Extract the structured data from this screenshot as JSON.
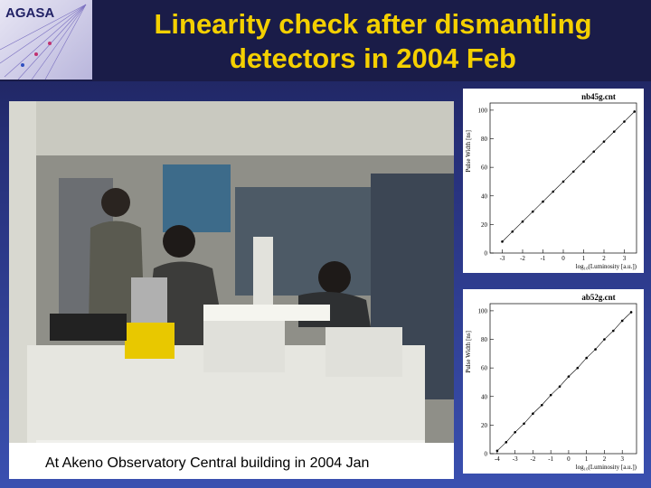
{
  "header": {
    "logo": "AGASA",
    "title_lines": [
      "Linearity check after dismantling",
      "detectors in 2004 Feb"
    ]
  },
  "photo": {
    "caption": "At Akeno Observatory Central building in 2004 Jan"
  },
  "chart_data": [
    {
      "type": "scatter",
      "title": "nb45g.cnt",
      "xlabel": "log₁₀(Luminosity [a.u.])",
      "ylabel": "Pulse Width [ns]",
      "xlim": [
        -3.6,
        3.6
      ],
      "ylim": [
        0,
        105
      ],
      "xticks": [
        -3,
        -2,
        -1,
        0,
        1,
        2,
        3
      ],
      "yticks": [
        0,
        20,
        40,
        60,
        80,
        100
      ],
      "color": "#000000",
      "x": [
        -3.0,
        -2.5,
        -2.0,
        -1.5,
        -1.0,
        -0.5,
        0.0,
        0.5,
        1.0,
        1.5,
        2.0,
        2.5,
        3.0,
        3.5
      ],
      "y": [
        8,
        15,
        22,
        29,
        36,
        43,
        50,
        57,
        64,
        71,
        78,
        85,
        92,
        99
      ]
    },
    {
      "type": "scatter",
      "title": "ab52g.cnt",
      "xlabel": "log₁₀(Luminosity [a.u.])",
      "ylabel": "Pulse Width [ns]",
      "xlim": [
        -4.4,
        3.8
      ],
      "ylim": [
        0,
        105
      ],
      "xticks": [
        -4,
        -3,
        -2,
        -1,
        0,
        1,
        2,
        3
      ],
      "yticks": [
        0,
        20,
        40,
        60,
        80,
        100
      ],
      "color": "#000000",
      "x": [
        -4.0,
        -3.5,
        -3.0,
        -2.5,
        -2.0,
        -1.5,
        -1.0,
        -0.5,
        0.0,
        0.5,
        1.0,
        1.5,
        2.0,
        2.5,
        3.0,
        3.5
      ],
      "y": [
        2,
        8,
        15,
        21,
        28,
        34,
        41,
        47,
        54,
        60,
        67,
        73,
        80,
        86,
        93,
        99
      ]
    }
  ]
}
